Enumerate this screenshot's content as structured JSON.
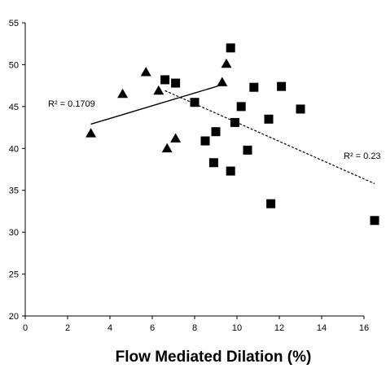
{
  "chart_data": {
    "type": "scatter",
    "xlabel": "Flow Mediated Dilation (%)",
    "ylabel": "",
    "xlim": [
      0,
      16
    ],
    "ylim": [
      20,
      55
    ],
    "x_ticks": [
      0,
      2,
      4,
      6,
      8,
      10,
      12,
      14,
      16
    ],
    "y_ticks": [
      20,
      25,
      30,
      35,
      40,
      45,
      50,
      55
    ],
    "grid": false,
    "series": [
      {
        "marker": "triangle",
        "trendline": "solid",
        "r2_label": "R² = 0.1709",
        "points": [
          [
            3.1,
            41.8
          ],
          [
            4.6,
            46.5
          ],
          [
            5.7,
            49.1
          ],
          [
            6.3,
            46.9
          ],
          [
            6.7,
            40.0
          ],
          [
            7.1,
            41.2
          ],
          [
            9.3,
            47.9
          ],
          [
            9.5,
            50.1
          ]
        ],
        "fit": [
          [
            3.1,
            42.9
          ],
          [
            9.3,
            47.6
          ]
        ]
      },
      {
        "marker": "square",
        "trendline": "dashed",
        "r2_label": "R² = 0.23",
        "points": [
          [
            6.6,
            48.2
          ],
          [
            7.1,
            47.8
          ],
          [
            8.0,
            45.5
          ],
          [
            8.5,
            40.9
          ],
          [
            8.9,
            38.3
          ],
          [
            9.0,
            42.0
          ],
          [
            9.7,
            52.0
          ],
          [
            9.7,
            37.3
          ],
          [
            9.9,
            43.1
          ],
          [
            10.2,
            45.0
          ],
          [
            10.5,
            39.8
          ],
          [
            10.8,
            47.3
          ],
          [
            11.5,
            43.5
          ],
          [
            11.6,
            33.4
          ],
          [
            12.1,
            47.4
          ],
          [
            13.0,
            44.7
          ],
          [
            16.5,
            31.4
          ]
        ],
        "fit": [
          [
            6.6,
            46.9
          ],
          [
            16.5,
            35.8
          ]
        ]
      }
    ]
  }
}
